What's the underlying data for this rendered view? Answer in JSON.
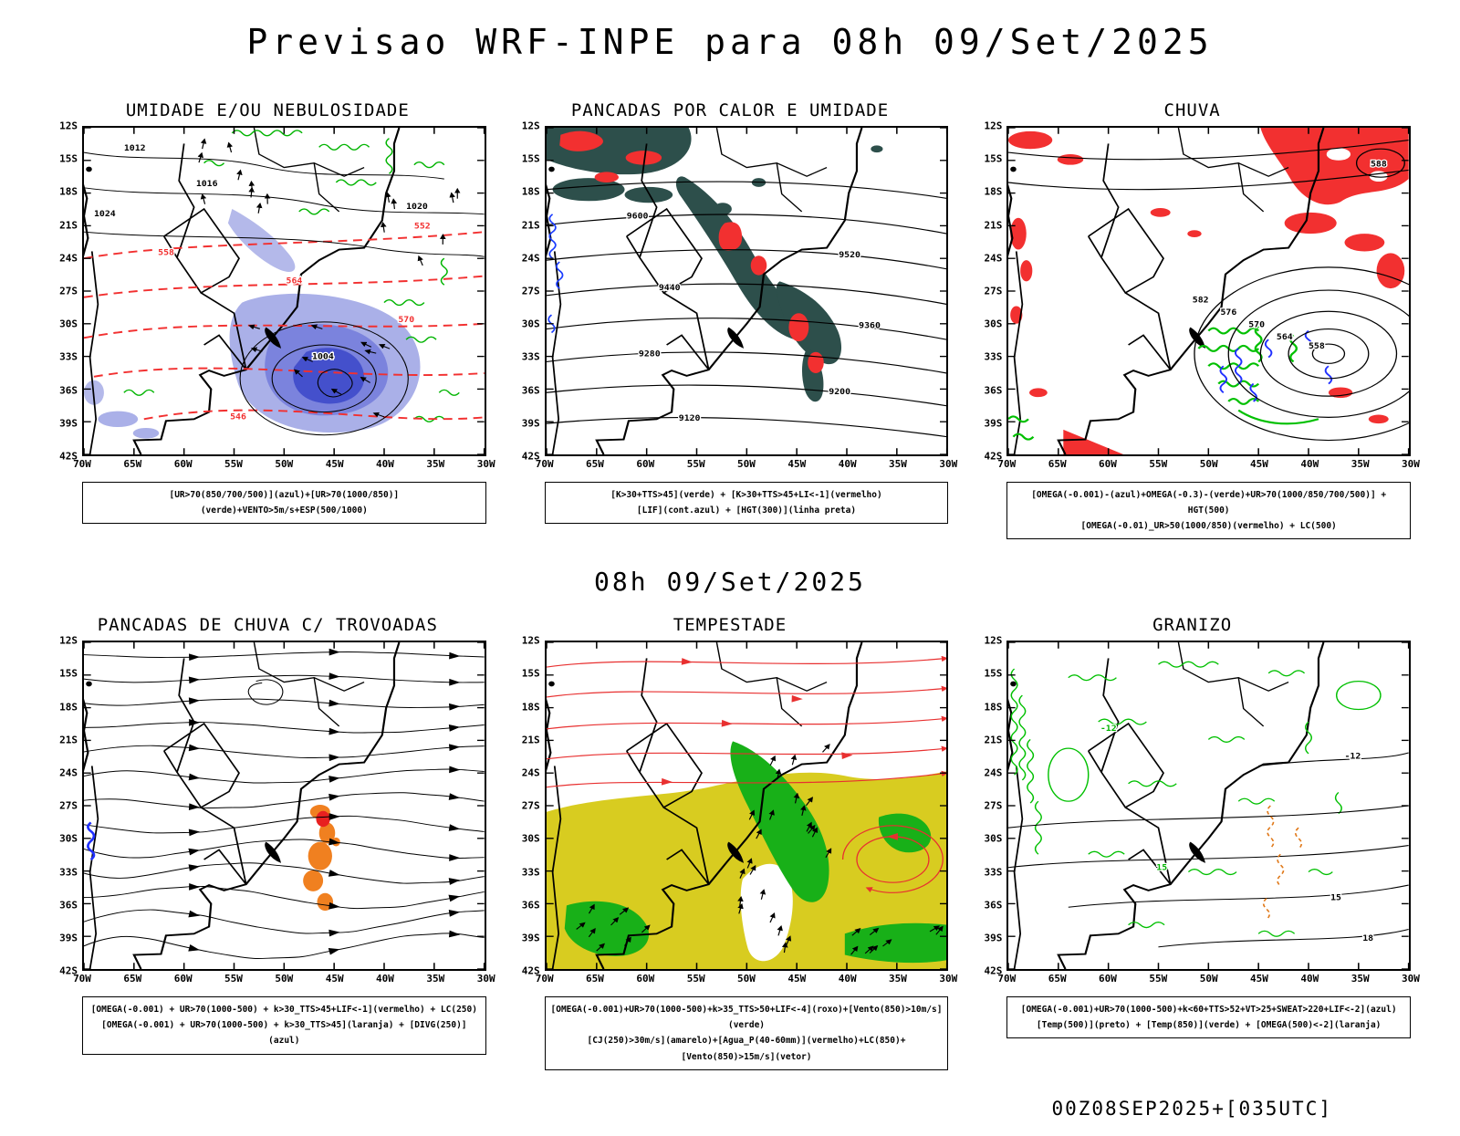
{
  "title": "Previsao WRF-INPE  para 08h 09/Set/2025",
  "mid_caption": "08h 09/Set/2025",
  "footer": "00Z08SEP2025+[035UTC]",
  "axes": {
    "y_labels": [
      "12S",
      "15S",
      "18S",
      "21S",
      "24S",
      "27S",
      "30S",
      "33S",
      "36S",
      "39S",
      "42S"
    ],
    "x_labels": [
      "70W",
      "65W",
      "60W",
      "55W",
      "50W",
      "45W",
      "40W",
      "35W",
      "30W"
    ]
  },
  "panels": [
    {
      "title": "UMIDADE E/OU NEBULOSIDADE",
      "legend_lines": [
        "[UR>70(850/700/500)](azul)+[UR>70(1000/850)](verde)+VENTO>5m/s+ESP(500/1000)"
      ],
      "map_labels": [
        "1012",
        "1016",
        "1020",
        "1024",
        "1004",
        "552",
        "558",
        "564",
        "570",
        "546"
      ]
    },
    {
      "title": "PANCADAS POR CALOR E UMIDADE",
      "legend_lines": [
        "[K>30+TTS>45](verde) + [K>30+TTS>45+LI<-1](vermelho)",
        "[LIF](cont.azul) + [HGT(300)](linha preta)"
      ],
      "map_labels": [
        "9600",
        "9520",
        "9440",
        "9360",
        "9280",
        "9200",
        "9120"
      ]
    },
    {
      "title": "CHUVA",
      "legend_lines": [
        "[OMEGA(-0.001)-(azul)+OMEGA(-0.3)-(verde)+UR>70(1000/850/700/500)] + HGT(500)",
        "[OMEGA(-0.01)_UR>50(1000/850)(vermelho) + LC(500)"
      ],
      "map_labels": [
        "558",
        "564",
        "570",
        "576",
        "582",
        "588"
      ]
    },
    {
      "title": "PANCADAS DE CHUVA C/ TROVOADAS",
      "legend_lines": [
        "[OMEGA(-0.001) + UR>70(1000-500) + k>30_TTS>45+LIF<-1](vermelho) + LC(250)",
        "[OMEGA(-0.001) + UR>70(1000-500) + k>30_TTS>45](laranja) + [DIVG(250)](azul)"
      ],
      "map_labels": []
    },
    {
      "title": "TEMPESTADE",
      "legend_lines": [
        "[OMEGA(-0.001)+UR>70(1000-500)+k>35_TTS>50+LIF<-4](roxo)+[Vento(850)>10m/s](verde)",
        "[CJ(250)>30m/s](amarelo)+[Agua_P(40-60mm)](vermelho)+LC(850)+[Vento(850)>15m/s](vetor)"
      ],
      "map_labels": []
    },
    {
      "title": "GRANIZO",
      "legend_lines": [
        "[OMEGA(-0.001)+UR>70(1000-500)+k<60+TTS>52+VT>25+SWEAT>220+LIF<-2](azul)",
        "[Temp(500)](preto) + [Temp(850)](verde) + [OMEGA(500)<-2](laranja)"
      ],
      "map_labels": [
        "-12",
        "15",
        "18",
        "-12",
        "15"
      ]
    }
  ],
  "colors": {
    "green": "#00b400",
    "red": "#f23030",
    "dark_teal": "#2d4f4b",
    "blue": "#1a3cff",
    "purple_light": "#aab0e8",
    "purple_mid": "#7b83dd",
    "purple_dark": "#4450cc",
    "orange": "#f08020",
    "yellow": "#d8cc20",
    "black": "#000000"
  }
}
